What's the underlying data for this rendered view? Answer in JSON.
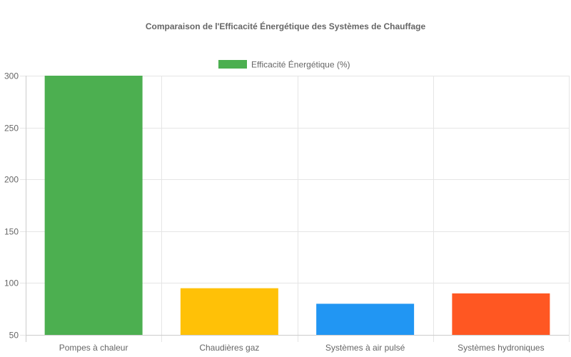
{
  "chart_data": {
    "type": "bar",
    "title": "Comparaison de l'Efficacité Énergétique des Systèmes de Chauffage",
    "categories": [
      "Pompes à chaleur",
      "Chaudières gaz",
      "Systèmes à air pulsé",
      "Systèmes hydroniques"
    ],
    "series": [
      {
        "name": "Efficacité Énergétique (%)",
        "values": [
          300,
          95,
          80,
          90
        ],
        "colors": [
          "#4caf50",
          "#ffc107",
          "#2196f3",
          "#ff5722"
        ]
      }
    ],
    "ylim": [
      50,
      300
    ],
    "yticks": [
      50,
      100,
      150,
      200,
      250,
      300
    ],
    "legend_position": "top",
    "grid": true
  }
}
